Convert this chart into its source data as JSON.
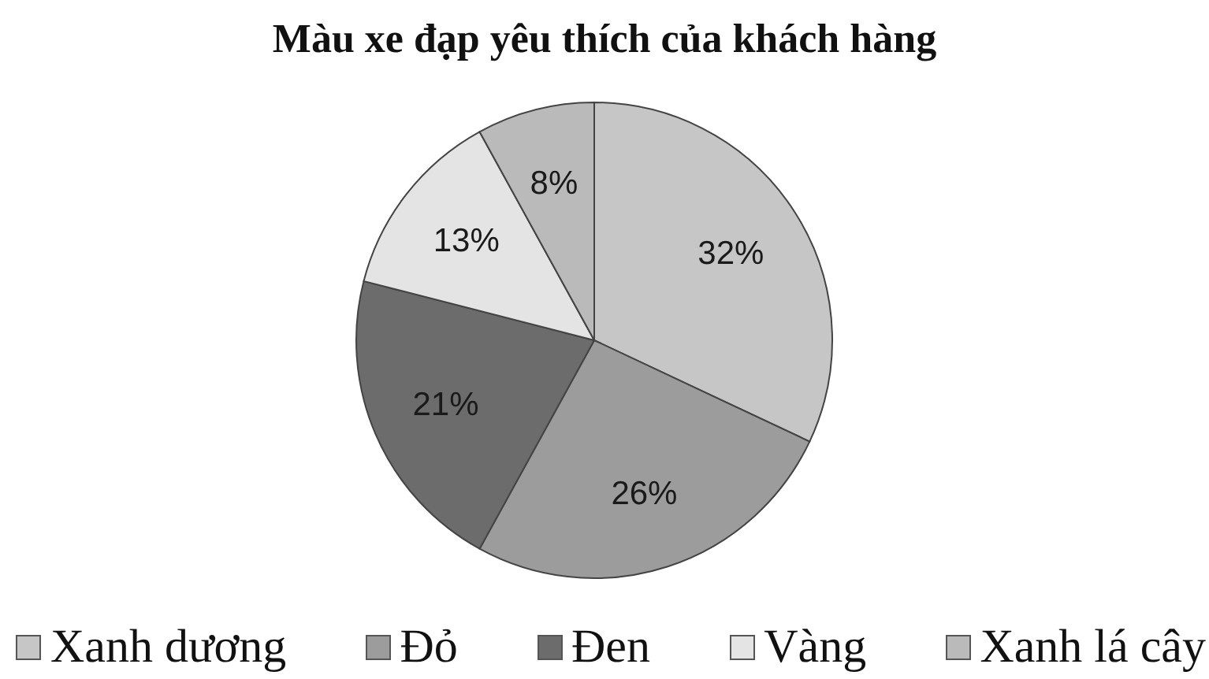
{
  "chart_data": {
    "type": "pie",
    "title": "Màu xe đạp yêu thích của khách hàng",
    "categories": [
      "Xanh dương",
      "Đỏ",
      "Đen",
      "Vàng",
      "Xanh lá cây"
    ],
    "values": [
      32,
      26,
      21,
      13,
      8
    ],
    "colors": [
      "#c6c6c6",
      "#9c9c9c",
      "#6c6c6c",
      "#e4e4e4",
      "#bababa"
    ],
    "value_labels": [
      "32%",
      "26%",
      "21%",
      "13%",
      "8%"
    ],
    "legend": "bottom"
  }
}
